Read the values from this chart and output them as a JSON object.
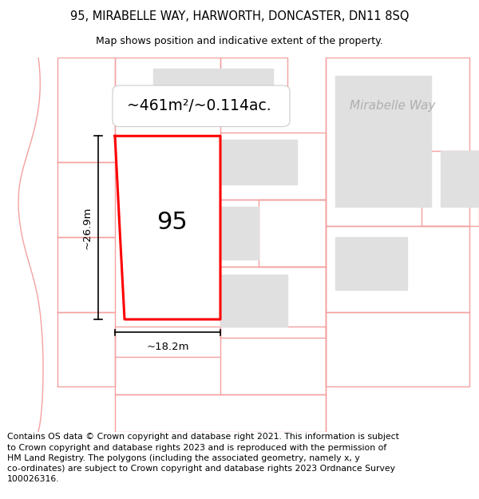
{
  "title_line1": "95, MIRABELLE WAY, HARWORTH, DONCASTER, DN11 8SQ",
  "title_line2": "Map shows position and indicative extent of the property.",
  "footer_text": "Contains OS data © Crown copyright and database right 2021. This information is subject to Crown copyright and database rights 2023 and is reproduced with the permission of HM Land Registry. The polygons (including the associated geometry, namely x, y co-ordinates) are subject to Crown copyright and database rights 2023 Ordnance Survey 100026316.",
  "area_label": "~461m²/~0.114ac.",
  "street_label": "Mirabelle Way",
  "plot_number": "95",
  "width_label": "~18.2m",
  "height_label": "~26.9m",
  "plot_color": "#ff0000",
  "neighbor_line_color": "#f4a0a0",
  "building_color": "#e0e0e0",
  "background_color": "#ffffff",
  "title_fontsize": 10.5,
  "subtitle_fontsize": 9,
  "footer_fontsize": 7.8
}
